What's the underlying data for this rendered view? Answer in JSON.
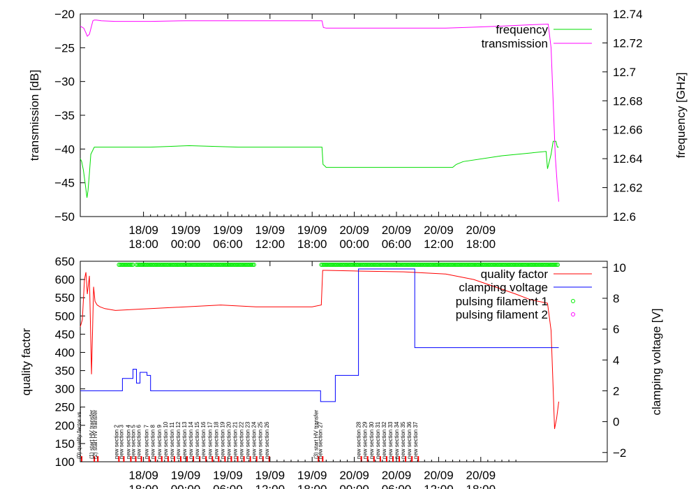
{
  "chart_data": [
    {
      "type": "line",
      "ylabel": "transmission [dB]",
      "y2label": "frequency [GHz]",
      "ylim": [
        -50,
        -20
      ],
      "y2lim": [
        12.6,
        12.74
      ],
      "yticks": [
        "−50",
        "−45",
        "−40",
        "−35",
        "−30",
        "−25",
        "−20"
      ],
      "y2ticks": [
        "12.6",
        "12.62",
        "12.64",
        "12.66",
        "12.68",
        "12.7",
        "12.72",
        "12.74"
      ],
      "xlim": [
        0,
        75
      ],
      "xtick_hours": [
        9,
        15,
        21,
        27,
        33,
        39,
        45,
        51,
        57
      ],
      "xticks": [
        {
          "date": "18/09",
          "time": "18:00"
        },
        {
          "date": "19/09",
          "time": "00:00"
        },
        {
          "date": "19/09",
          "time": "06:00"
        },
        {
          "date": "19/09",
          "time": "12:00"
        },
        {
          "date": "19/09",
          "time": "18:00"
        },
        {
          "date": "20/09",
          "time": "00:00"
        },
        {
          "date": "20/09",
          "time": "06:00"
        },
        {
          "date": "20/09",
          "time": "12:00"
        },
        {
          "date": "20/09",
          "time": "18:00"
        }
      ],
      "legend_position": "top-right",
      "series": [
        {
          "name": "frequency",
          "color": "#00dd00",
          "axis": "y2",
          "x": [
            0,
            0.2,
            0.45,
            0.7,
            0.95,
            1.1,
            1.3,
            1.5,
            2.0,
            2.6,
            3.3,
            5.0,
            10.0,
            15.5,
            22.5,
            30.0,
            33.0,
            34.4,
            34.55,
            34.8,
            35.0,
            40.0,
            46.0,
            52.0,
            53.0,
            53.5,
            54.5,
            60.0,
            66.3,
            66.5,
            67.0,
            67.3,
            67.7,
            67.9,
            68.1
          ],
          "values": [
            12.64,
            12.638,
            12.632,
            12.623,
            12.613,
            12.618,
            12.63,
            12.643,
            12.648,
            12.648,
            12.648,
            12.648,
            12.648,
            12.649,
            12.648,
            12.648,
            12.648,
            12.648,
            12.636,
            12.635,
            12.634,
            12.634,
            12.634,
            12.634,
            12.634,
            12.636,
            12.638,
            12.642,
            12.645,
            12.633,
            12.643,
            12.652,
            12.652,
            12.648,
            12.648
          ]
        },
        {
          "name": "transmission",
          "color": "#ff00ff",
          "axis": "y",
          "x": [
            0,
            0.5,
            0.8,
            1.0,
            1.3,
            1.6,
            1.8,
            2.0,
            2.3,
            3.0,
            5.0,
            10.0,
            15.0,
            22.0,
            28.0,
            33.0,
            34.4,
            34.6,
            35.0,
            40.0,
            46.0,
            52.0,
            55.0,
            60.0,
            64.0,
            66.6,
            67.0,
            67.3,
            67.6,
            67.9,
            68.1
          ],
          "values": [
            -21.8,
            -22.1,
            -22.8,
            -23.3,
            -23.0,
            -21.8,
            -21.0,
            -20.9,
            -20.9,
            -21.0,
            -21.1,
            -21.1,
            -21.0,
            -21.0,
            -21.0,
            -21.0,
            -21.0,
            -22.0,
            -22.1,
            -22.1,
            -22.1,
            -22.1,
            -22.0,
            -21.8,
            -21.6,
            -21.5,
            -25.0,
            -33.0,
            -41.0,
            -45.5,
            -47.8
          ]
        }
      ]
    },
    {
      "type": "line",
      "ylabel": "quality factor",
      "y2label": "clamping voltage [V]",
      "ylim": [
        100,
        650
      ],
      "y2lim": [
        -2.6,
        10.4
      ],
      "yticks": [
        "100",
        "150",
        "200",
        "250",
        "300",
        "350",
        "400",
        "450",
        "500",
        "550",
        "600",
        "650"
      ],
      "y2ticks": [
        "−2",
        "0",
        "2",
        "4",
        "6",
        "8",
        "10"
      ],
      "xlim": [
        0,
        75
      ],
      "xtick_hours": [
        9,
        15,
        21,
        27,
        33,
        39,
        45,
        51,
        57
      ],
      "xticks": [
        {
          "date": "18/09",
          "time": "18:00"
        },
        {
          "date": "19/09",
          "time": "00:00"
        },
        {
          "date": "19/09",
          "time": "06:00"
        },
        {
          "date": "19/09",
          "time": "12:00"
        },
        {
          "date": "19/09",
          "time": "18:00"
        },
        {
          "date": "20/09",
          "time": "00:00"
        },
        {
          "date": "20/09",
          "time": "06:00"
        },
        {
          "date": "20/09",
          "time": "12:00"
        },
        {
          "date": "20/09",
          "time": "18:00"
        }
      ],
      "legend_position": "top-right",
      "series": [
        {
          "name": "quality factor",
          "color": "#ff0000",
          "axis": "y",
          "x": [
            0,
            0.3,
            0.6,
            0.8,
            1.0,
            1.3,
            1.6,
            1.9,
            2.1,
            2.4,
            2.8,
            3.5,
            5.0,
            10.0,
            15.0,
            20.0,
            25.0,
            30.0,
            33.0,
            34.3,
            34.5,
            35.0,
            40.0,
            46.0,
            52.0,
            56.0,
            59.0,
            62.0,
            64.0,
            66.5,
            67.0,
            67.3,
            67.5,
            67.8,
            68.1
          ],
          "values": [
            470,
            490,
            600,
            620,
            560,
            610,
            340,
            580,
            540,
            530,
            525,
            520,
            515,
            520,
            525,
            530,
            525,
            525,
            525,
            530,
            625,
            625,
            623,
            621,
            615,
            600,
            580,
            560,
            545,
            535,
            460,
            300,
            190,
            220,
            265
          ]
        },
        {
          "name": "clamping voltage",
          "color": "#0000ff",
          "axis": "y2",
          "x": [
            0,
            5.5,
            6.0,
            6.5,
            7.5,
            8.0,
            8.5,
            9.5,
            10.0,
            24.8,
            25.0,
            33.8,
            34.2,
            36.3,
            37.3,
            39.6,
            47.6,
            47.8
          ],
          "values": [
            2.0,
            2.0,
            2.8,
            2.8,
            3.4,
            2.5,
            3.2,
            3.0,
            2.0,
            2.0,
            2.0,
            2.0,
            1.3,
            3.0,
            3.0,
            9.9,
            4.8,
            4.8
          ]
        },
        {
          "name": "pulsing filament 1",
          "color": "#00ee00",
          "axis": "y",
          "marker": "circle"
        },
        {
          "name": "pulsing filament 2",
          "color": "#ff00ff",
          "axis": "y",
          "marker": "circle"
        }
      ],
      "filament_1_segments": [
        [
          5.5,
          7.5
        ],
        [
          8.0,
          24.8
        ],
        [
          34.3,
          68.1
        ]
      ],
      "annotations": [
        {
          "x": 0.2,
          "text": "(0) quality factor vs..."
        },
        {
          "x": 2.0,
          "text": "(1) start HV transfer"
        },
        {
          "x": 2.5,
          "text": "(2) start HV transfer"
        },
        {
          "x": 5.5,
          "text": "new section 2"
        },
        {
          "x": 6.2,
          "text": "new section 3"
        },
        {
          "x": 7.2,
          "text": "new section 4"
        },
        {
          "x": 7.9,
          "text": "new section 5"
        },
        {
          "x": 8.7,
          "text": "new section 6"
        },
        {
          "x": 9.8,
          "text": "new section 7"
        },
        {
          "x": 10.7,
          "text": "new section 8"
        },
        {
          "x": 11.6,
          "text": "new section 9"
        },
        {
          "x": 12.5,
          "text": "new section 10"
        },
        {
          "x": 13.4,
          "text": "new section 11"
        },
        {
          "x": 14.3,
          "text": "new section 12"
        },
        {
          "x": 15.2,
          "text": "new section 13"
        },
        {
          "x": 16.1,
          "text": "new section 14"
        },
        {
          "x": 17.0,
          "text": "new section 15"
        },
        {
          "x": 17.9,
          "text": "new section 16"
        },
        {
          "x": 18.8,
          "text": "new section 17"
        },
        {
          "x": 19.7,
          "text": "new section 18"
        },
        {
          "x": 20.6,
          "text": "new section 19"
        },
        {
          "x": 21.5,
          "text": "new section 20"
        },
        {
          "x": 22.4,
          "text": "new section 21"
        },
        {
          "x": 23.3,
          "text": "new section 22"
        },
        {
          "x": 24.2,
          "text": "new section 23"
        },
        {
          "x": 25.1,
          "text": "new section 24"
        },
        {
          "x": 26.0,
          "text": "new section 25"
        },
        {
          "x": 26.9,
          "text": "new section 26"
        },
        {
          "x": 33.9,
          "text": "(3) start HV transfer"
        },
        {
          "x": 34.5,
          "text": "new section 27"
        },
        {
          "x": 40.0,
          "text": "new section 28"
        },
        {
          "x": 40.9,
          "text": "new section 29"
        },
        {
          "x": 41.8,
          "text": "new section 30"
        },
        {
          "x": 42.7,
          "text": "new section 31"
        },
        {
          "x": 43.6,
          "text": "new section 32"
        },
        {
          "x": 44.5,
          "text": "new section 33"
        },
        {
          "x": 45.4,
          "text": "new section 34"
        },
        {
          "x": 46.3,
          "text": "new section 35"
        },
        {
          "x": 47.2,
          "text": "new section 36"
        },
        {
          "x": 48.1,
          "text": "new section 37"
        }
      ]
    }
  ]
}
